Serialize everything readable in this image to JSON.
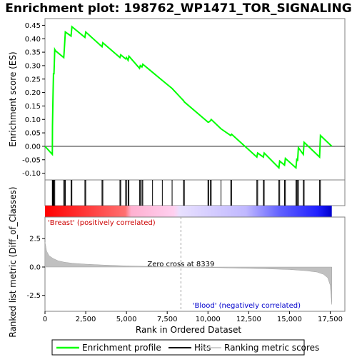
{
  "chart_data": {
    "type": "line",
    "title": "Enrichment plot: 198762_WP1471_TOR_SIGNALING",
    "top_panel": {
      "ylabel": "Enrichment score (ES)",
      "ylim": [
        -0.125,
        0.475
      ],
      "yticks": [
        -0.1,
        -0.05,
        0.0,
        0.05,
        0.1,
        0.15,
        0.2,
        0.25,
        0.3,
        0.35,
        0.4,
        0.45
      ],
      "ytick_labels": [
        "-0.10",
        "-0.05",
        "0.00",
        "0.05",
        "0.10",
        "0.15",
        "0.20",
        "0.25",
        "0.30",
        "0.35",
        "0.40",
        "0.45"
      ],
      "series": [
        {
          "name": "Enrichment profile",
          "color": "#00ff00",
          "x": [
            0,
            450,
            460,
            490,
            520,
            550,
            600,
            650,
            1150,
            1200,
            1250,
            1600,
            1650,
            2450,
            2500,
            3500,
            3550,
            4600,
            4650,
            4950,
            5000,
            5100,
            5150,
            5800,
            5850,
            5950,
            6000,
            6600,
            7200,
            7800,
            8500,
            8550,
            10000,
            10050,
            10150,
            10200,
            10800,
            11400,
            11450,
            13000,
            13050,
            13400,
            13450,
            14350,
            14400,
            14700,
            14750,
            15400,
            15450,
            15500,
            15550,
            15850,
            15900,
            16850,
            16900,
            17600
          ],
          "y": [
            0.0,
            -0.03,
            0.075,
            0.18,
            0.27,
            0.27,
            0.36,
            0.355,
            0.33,
            0.375,
            0.425,
            0.41,
            0.445,
            0.405,
            0.425,
            0.37,
            0.385,
            0.33,
            0.34,
            0.325,
            0.33,
            0.32,
            0.335,
            0.29,
            0.3,
            0.295,
            0.305,
            0.275,
            0.245,
            0.215,
            0.17,
            0.165,
            0.09,
            0.09,
            0.095,
            0.1,
            0.065,
            0.04,
            0.045,
            -0.04,
            -0.025,
            -0.04,
            -0.025,
            -0.08,
            -0.055,
            -0.07,
            -0.045,
            -0.08,
            -0.045,
            -0.055,
            -0.005,
            -0.03,
            0.015,
            -0.04,
            0.04,
            0.0
          ]
        }
      ]
    },
    "hits": {
      "name": "Hits",
      "x": [
        450,
        460,
        490,
        520,
        550,
        600,
        1150,
        1200,
        1250,
        1600,
        1650,
        2450,
        2500,
        3500,
        3550,
        4600,
        4650,
        4950,
        5000,
        5100,
        5150,
        5800,
        5850,
        5950,
        6000,
        6600,
        7200,
        7800,
        8500,
        8550,
        10000,
        10050,
        10150,
        10200,
        10800,
        11400,
        11450,
        13000,
        13050,
        13400,
        13450,
        14350,
        14400,
        14700,
        14750,
        15400,
        15450,
        15500,
        15550,
        15850,
        15900,
        16850,
        16900
      ]
    },
    "bottom_panel": {
      "ylabel": "Ranked list metric (Diff_of_Classes)",
      "xlabel": "Rank in Ordered Dataset",
      "ylim": [
        -3.9,
        4.4
      ],
      "yticks": [
        -2.5,
        0.0,
        2.5
      ],
      "ytick_labels": [
        "-2.5",
        "0.0",
        "2.5"
      ],
      "xlim": [
        0,
        18400
      ],
      "xticks": [
        0,
        2500,
        5000,
        7500,
        10000,
        12500,
        15000,
        17500
      ],
      "xtick_labels": [
        "0",
        "2,500",
        "5,000",
        "7,500",
        "10,000",
        "12,500",
        "15,000",
        "17,500"
      ],
      "series": [
        {
          "name": "Ranking metric scores",
          "color": "#c0c0c0",
          "x": [
            0,
            100,
            250,
            500,
            800,
            1200,
            1700,
            2500,
            3500,
            5000,
            6500,
            8339,
            10000,
            12000,
            13500,
            15000,
            16000,
            16700,
            17100,
            17350,
            17500,
            17600
          ],
          "y": [
            2.2,
            1.4,
            1.0,
            0.75,
            0.55,
            0.42,
            0.33,
            0.25,
            0.18,
            0.1,
            0.05,
            0.0,
            -0.04,
            -0.1,
            -0.15,
            -0.22,
            -0.32,
            -0.45,
            -0.65,
            -0.95,
            -1.6,
            -3.3
          ]
        }
      ],
      "zero_cross_label": "Zero cross at 8339",
      "zero_cross_x": 8339,
      "class_labels": {
        "positive": "'Breast' (positively correlated)",
        "negative": "'Blood' (negatively correlated)",
        "positive_color": "#cc0000",
        "negative_color": "#0000cc"
      }
    },
    "legend": {
      "items": [
        "Enrichment profile",
        "Hits",
        "Ranking metric scores"
      ],
      "placement": "bottom"
    }
  }
}
